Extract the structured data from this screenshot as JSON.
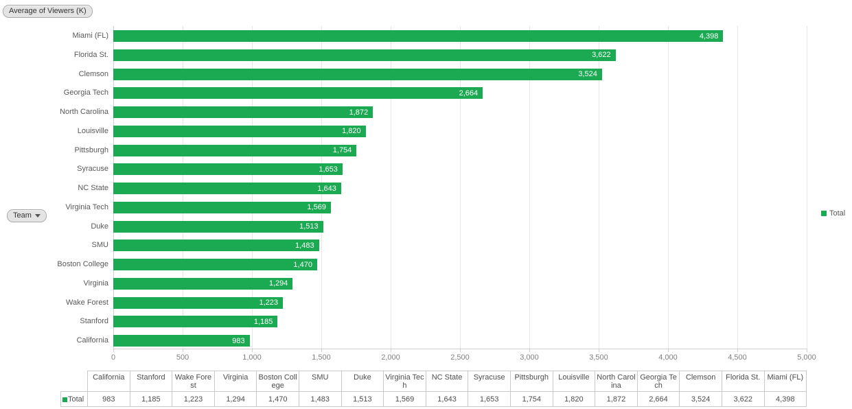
{
  "controls": {
    "value_field_label": "Average of Viewers (K)",
    "row_field_label": "Team"
  },
  "legend": {
    "label": "Total",
    "swatch_color": "#1BAA52"
  },
  "chart_data": {
    "type": "bar",
    "orientation": "horizontal",
    "title": "Average of Viewers (K)",
    "categories": [
      "Miami (FL)",
      "Florida St.",
      "Clemson",
      "Georgia Tech",
      "North Carolina",
      "Louisville",
      "Pittsburgh",
      "Syracuse",
      "NC State",
      "Virginia Tech",
      "Duke",
      "SMU",
      "Boston College",
      "Virginia",
      "Wake Forest",
      "Stanford",
      "California"
    ],
    "series": [
      {
        "name": "Total",
        "values": [
          4398,
          3622,
          3524,
          2664,
          1872,
          1820,
          1754,
          1653,
          1643,
          1569,
          1513,
          1483,
          1470,
          1294,
          1223,
          1185,
          983
        ]
      }
    ],
    "xlabel": "",
    "ylabel": "Team",
    "value_axis": {
      "min": 0,
      "max": 5000,
      "ticks": [
        0,
        500,
        1000,
        1500,
        2000,
        2500,
        3000,
        3500,
        4000,
        4500,
        5000
      ]
    },
    "bar_color": "#1BAA52",
    "grid": true,
    "legend_position": "right",
    "value_labels_inside_bars": true
  },
  "table": {
    "series_label": "Total",
    "columns": [
      "California",
      "Stanford",
      "Wake Forest",
      "Virginia",
      "Boston College",
      "SMU",
      "Duke",
      "Virginia Tech",
      "NC State",
      "Syracuse",
      "Pittsburgh",
      "Louisville",
      "North Carolina",
      "Georgia Tech",
      "Clemson",
      "Florida St.",
      "Miami (FL)"
    ],
    "values": [
      983,
      1185,
      1223,
      1294,
      1470,
      1483,
      1513,
      1569,
      1643,
      1653,
      1754,
      1820,
      1872,
      2664,
      3524,
      3622,
      4398
    ]
  }
}
